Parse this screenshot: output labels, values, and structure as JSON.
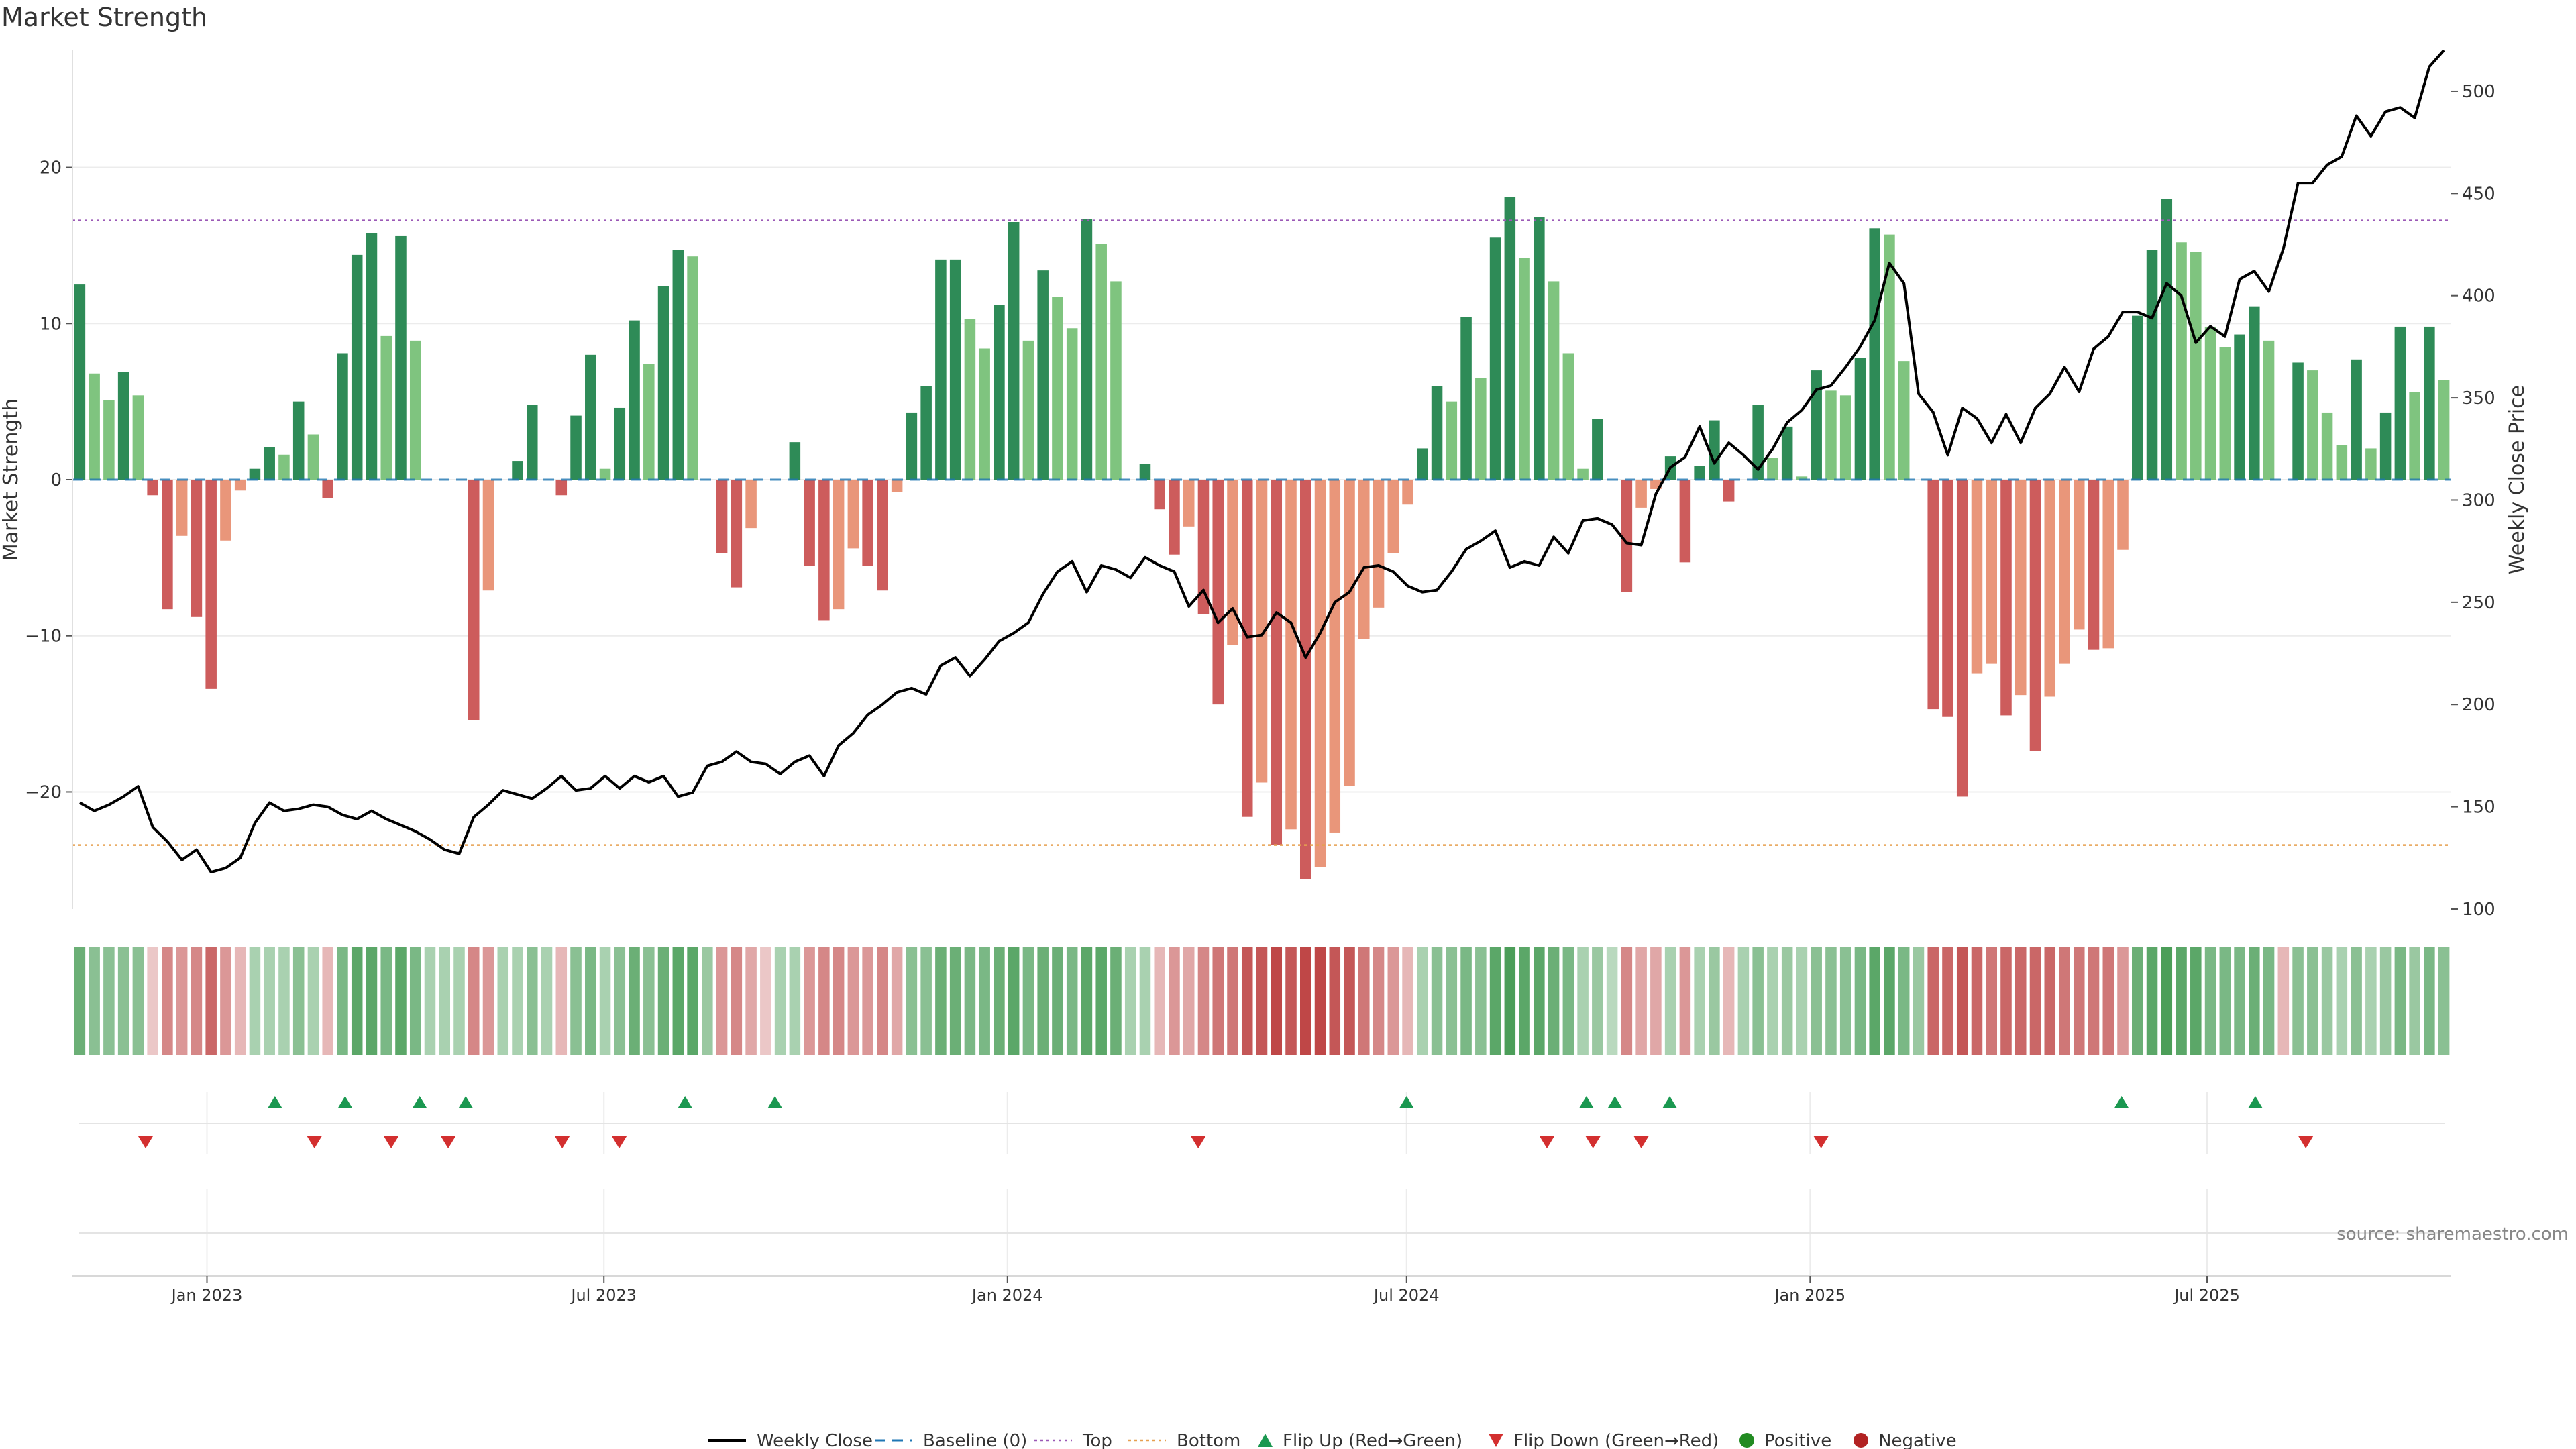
{
  "title": "Market Strength",
  "source": "source: sharemaestro.com",
  "colors": {
    "pos_strong": "#2e8b57",
    "pos_light": "#7fc47f",
    "neg_strong": "#cd5c5c",
    "neg_light": "#e9967a",
    "price_line": "#000000",
    "baseline": "#1f77b4",
    "top": "#9b59b6",
    "bottom": "#e6a050",
    "flip_up": "#1a9850",
    "flip_down": "#d32f2f",
    "positive_dot": "#228b22",
    "negative_dot": "#b22222"
  },
  "legend": [
    {
      "key": "weekly_close",
      "label": "Weekly Close"
    },
    {
      "key": "baseline",
      "label": "Baseline (0)"
    },
    {
      "key": "top",
      "label": "Top"
    },
    {
      "key": "bottom",
      "label": "Bottom"
    },
    {
      "key": "flip_up",
      "label": "Flip Up (Red→Green)"
    },
    {
      "key": "flip_down",
      "label": "Flip Down (Green→Red)"
    },
    {
      "key": "positive",
      "label": "Positive"
    },
    {
      "key": "negative",
      "label": "Negative"
    }
  ],
  "chart_data": {
    "type": "bar",
    "ylabel": "Market Strength",
    "y2label": "Weekly Close Price",
    "ylim": [
      -27.5,
      27.5
    ],
    "y_ticks": [
      -20,
      -10,
      0,
      10,
      20
    ],
    "y2lim": [
      100,
      520
    ],
    "y2_ticks": [
      100,
      150,
      200,
      250,
      300,
      350,
      400,
      450,
      500
    ],
    "top_level": 16.6,
    "bottom_level": -23.4,
    "baseline": 0,
    "x_start": "2022-11-04",
    "x_end": "2025-10-17",
    "x_ticks": [
      {
        "date": "2023-01-01",
        "label": "Jan 2023"
      },
      {
        "date": "2023-07-01",
        "label": "Jul 2023"
      },
      {
        "date": "2024-01-01",
        "label": "Jan 2024"
      },
      {
        "date": "2024-07-01",
        "label": "Jul 2024"
      },
      {
        "date": "2025-01-01",
        "label": "Jan 2025"
      },
      {
        "date": "2025-07-01",
        "label": "Jul 2025"
      }
    ],
    "series": [
      {
        "name": "Market Strength",
        "kind": "bar",
        "values": [
          12.5,
          6.8,
          5.1,
          6.9,
          5.4,
          -1.0,
          -8.3,
          -3.6,
          -8.8,
          -13.4,
          -3.9,
          -0.7,
          0.7,
          2.1,
          1.6,
          5.0,
          2.9,
          -1.2,
          8.1,
          14.4,
          15.8,
          9.2,
          15.6,
          8.9,
          0,
          0,
          0,
          -15.4,
          -7.1,
          0,
          1.2,
          4.8,
          0,
          -1.0,
          4.1,
          8.0,
          0.7,
          4.6,
          10.2,
          7.4,
          12.4,
          14.7,
          14.3,
          0,
          -4.7,
          -6.9,
          -3.1,
          0,
          0,
          2.4,
          -5.5,
          -9.0,
          -8.3,
          -4.4,
          -5.5,
          -7.1,
          -0.8,
          4.3,
          6.0,
          14.1,
          14.1,
          10.3,
          8.4,
          11.2,
          16.5,
          8.9,
          13.4,
          11.7,
          9.7,
          16.7,
          15.1,
          12.7,
          0,
          1.0,
          -1.9,
          -4.8,
          -3.0,
          -8.6,
          -14.4,
          -10.6,
          -21.6,
          -19.4,
          -23.4,
          -22.4,
          -25.6,
          -24.8,
          -22.6,
          -19.6,
          -10.2,
          -8.2,
          -4.7,
          -1.6,
          2.0,
          6.0,
          5.0,
          10.4,
          6.5,
          15.5,
          18.1,
          14.2,
          16.8,
          12.7,
          8.1,
          0.7,
          3.9,
          0,
          -7.2,
          -1.8,
          -0.6,
          1.5,
          -5.3,
          0.9,
          3.8,
          -1.4,
          0,
          4.8,
          1.4,
          3.4,
          0.2,
          7.0,
          5.7,
          5.4,
          7.8,
          16.1,
          15.7,
          7.6,
          0,
          -14.7,
          -15.2,
          -20.3,
          -12.4,
          -11.8,
          -15.1,
          -13.8,
          -17.4,
          -13.9,
          -11.8,
          -9.6,
          -10.9,
          -10.8,
          -4.5,
          10.5,
          14.7,
          18.0,
          15.2,
          14.6,
          9.8,
          8.5,
          9.3,
          11.1,
          8.9,
          0,
          7.5,
          7.0,
          4.3,
          2.2,
          7.7,
          2.0,
          4.3,
          9.8,
          5.6,
          9.8,
          6.4
        ]
      },
      {
        "name": "Weekly Close",
        "kind": "line",
        "values": [
          152,
          148,
          151,
          155,
          160,
          140,
          133,
          124,
          129,
          118,
          120,
          125,
          142,
          152,
          148,
          149,
          151,
          150,
          146,
          144,
          148,
          144,
          141,
          138,
          134,
          129,
          127,
          145,
          151,
          158,
          156,
          154,
          159,
          165,
          158,
          159,
          165,
          159,
          165,
          162,
          165,
          155,
          157,
          170,
          172,
          177,
          172,
          171,
          166,
          172,
          175,
          165,
          180,
          186,
          195,
          200,
          206,
          208,
          205,
          219,
          223,
          214,
          222,
          231,
          235,
          240,
          254,
          265,
          270,
          255,
          268,
          266,
          262,
          272,
          268,
          265,
          248,
          256,
          240,
          247,
          233,
          234,
          245,
          240,
          223,
          235,
          250,
          255,
          267,
          268,
          265,
          258,
          255,
          256,
          265,
          276,
          280,
          285,
          267,
          270,
          268,
          282,
          274,
          290,
          291,
          288,
          279,
          278,
          303,
          316,
          321,
          336,
          318,
          328,
          322,
          315,
          325,
          338,
          344,
          354,
          356,
          365,
          375,
          388,
          416,
          406,
          352,
          343,
          322,
          345,
          340,
          328,
          342,
          328,
          345,
          352,
          365,
          353,
          374,
          380,
          392,
          392,
          389,
          406,
          400,
          377,
          385,
          380,
          408,
          412,
          402,
          423,
          455,
          455,
          464,
          468,
          488,
          478,
          490,
          492,
          487,
          512,
          520
        ]
      }
    ],
    "heat_levels": [
      0.7,
      0.5,
      0.5,
      0.5,
      0.5,
      -0.1,
      -0.5,
      -0.4,
      -0.5,
      -0.7,
      -0.4,
      -0.2,
      0.3,
      0.3,
      0.3,
      0.5,
      0.3,
      -0.2,
      0.6,
      0.8,
      0.8,
      0.6,
      0.8,
      0.6,
      0.3,
      0.3,
      0.3,
      -0.5,
      -0.4,
      0.3,
      0.3,
      0.5,
      0.3,
      -0.2,
      0.5,
      0.6,
      0.3,
      0.5,
      0.7,
      0.5,
      0.7,
      0.8,
      0.8,
      0.4,
      -0.4,
      -0.5,
      -0.3,
      -0.1,
      0.3,
      0.3,
      -0.4,
      -0.5,
      -0.5,
      -0.4,
      -0.4,
      -0.5,
      -0.3,
      0.5,
      0.5,
      0.7,
      0.7,
      0.6,
      0.6,
      0.7,
      0.8,
      0.6,
      0.7,
      0.7,
      0.6,
      0.8,
      0.8,
      0.7,
      0.3,
      0.3,
      -0.2,
      -0.4,
      -0.3,
      -0.5,
      -0.6,
      -0.6,
      -0.8,
      -0.8,
      -0.9,
      -0.8,
      -0.9,
      -0.9,
      -0.8,
      -0.8,
      -0.6,
      -0.5,
      -0.4,
      -0.2,
      0.3,
      0.5,
      0.5,
      0.6,
      0.5,
      0.8,
      0.9,
      0.8,
      0.8,
      0.7,
      0.6,
      0.3,
      0.4,
      0.2,
      -0.5,
      -0.3,
      -0.3,
      0.3,
      -0.4,
      0.3,
      0.4,
      -0.2,
      0.3,
      0.5,
      0.3,
      0.4,
      0.3,
      0.5,
      0.5,
      0.5,
      0.6,
      0.8,
      0.8,
      0.6,
      0.4,
      -0.7,
      -0.7,
      -0.8,
      -0.7,
      -0.6,
      -0.7,
      -0.7,
      -0.7,
      -0.7,
      -0.6,
      -0.6,
      -0.6,
      -0.6,
      -0.4,
      0.7,
      0.8,
      0.9,
      0.8,
      0.8,
      0.6,
      0.6,
      0.6,
      0.7,
      0.6,
      -0.2,
      0.5,
      0.5,
      0.4,
      0.3,
      0.5,
      0.3,
      0.4,
      0.6,
      0.4,
      0.6,
      0.5
    ],
    "flip_up_dates": [
      "2023-02-01",
      "2023-03-05",
      "2023-04-08",
      "2023-04-29",
      "2023-08-07",
      "2023-09-17",
      "2024-07-01",
      "2024-09-21",
      "2024-10-04",
      "2024-10-29",
      "2025-05-23",
      "2025-07-23"
    ],
    "flip_down_dates": [
      "2022-12-04",
      "2023-02-19",
      "2023-03-26",
      "2023-04-21",
      "2023-06-12",
      "2023-07-08",
      "2024-03-28",
      "2024-09-03",
      "2024-09-24",
      "2024-10-16",
      "2025-01-06",
      "2025-08-15"
    ]
  }
}
